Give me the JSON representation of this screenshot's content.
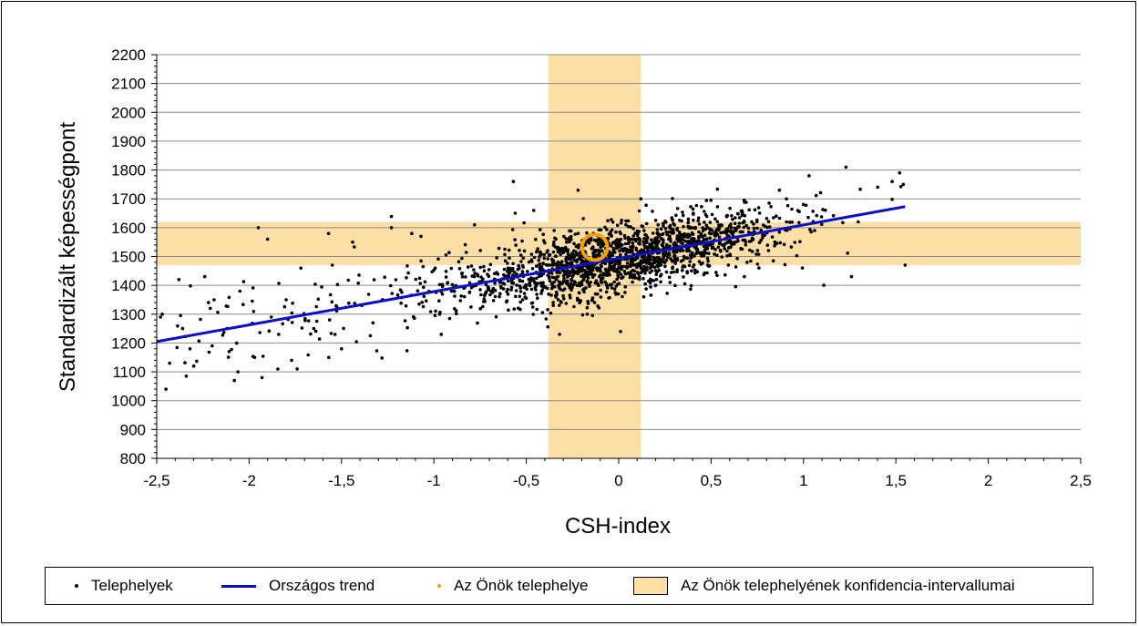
{
  "chart_data": {
    "type": "scatter",
    "xlabel": "CSH-index",
    "ylabel": "Standardizált képességpont",
    "xlim": [
      -2.5,
      2.5
    ],
    "ylim": [
      800,
      2200
    ],
    "x_ticks": [
      "-2,5",
      "-2",
      "-1,5",
      "-1",
      "-0,5",
      "0",
      "0,5",
      "1",
      "1,5",
      "2",
      "2,5"
    ],
    "y_ticks": [
      "800",
      "900",
      "1000",
      "1100",
      "1200",
      "1300",
      "1400",
      "1500",
      "1600",
      "1700",
      "1800",
      "1900",
      "2000",
      "2100",
      "2200"
    ],
    "y_grid": true,
    "x_grid": false,
    "legend_position": "bottom",
    "series": [
      {
        "name": "Telephelyek",
        "kind": "points",
        "color": "#000000",
        "approx_point_count": 1800,
        "distribution": {
          "x_center": 0.0,
          "x_range": [
            -2.5,
            1.55
          ],
          "trend_residual_sd": 58
        },
        "points": [
          {
            "x": -2.48,
            "y": 1290
          },
          {
            "x": -2.47,
            "y": 1300
          },
          {
            "x": -2.45,
            "y": 1040
          },
          {
            "x": -2.43,
            "y": 1130
          },
          {
            "x": -2.38,
            "y": 1420
          },
          {
            "x": -2.36,
            "y": 1250
          },
          {
            "x": -2.34,
            "y": 1085
          },
          {
            "x": -2.32,
            "y": 1180
          },
          {
            "x": -2.3,
            "y": 1120
          },
          {
            "x": -2.24,
            "y": 1430
          },
          {
            "x": -2.22,
            "y": 1340
          },
          {
            "x": -2.2,
            "y": 1190
          },
          {
            "x": -2.19,
            "y": 1350
          },
          {
            "x": -2.12,
            "y": 1250
          },
          {
            "x": -2.08,
            "y": 1070
          },
          {
            "x": -2.06,
            "y": 1100
          },
          {
            "x": -2.05,
            "y": 1380
          },
          {
            "x": -1.97,
            "y": 1150
          },
          {
            "x": -1.95,
            "y": 1600
          },
          {
            "x": -1.93,
            "y": 1080
          },
          {
            "x": -1.9,
            "y": 1560
          },
          {
            "x": -1.88,
            "y": 1290
          },
          {
            "x": -1.84,
            "y": 1230
          },
          {
            "x": -1.8,
            "y": 1350
          },
          {
            "x": -1.77,
            "y": 1140
          },
          {
            "x": -1.74,
            "y": 1110
          },
          {
            "x": -1.72,
            "y": 1460
          },
          {
            "x": -1.65,
            "y": 1250
          },
          {
            "x": -1.57,
            "y": 1580
          },
          {
            "x": -1.55,
            "y": 1470
          },
          {
            "x": -1.5,
            "y": 1180
          },
          {
            "x": -1.44,
            "y": 1550
          },
          {
            "x": -1.39,
            "y": 1330
          },
          {
            "x": -1.33,
            "y": 1270
          },
          {
            "x": -1.23,
            "y": 1600
          },
          {
            "x": -1.12,
            "y": 1580
          },
          {
            "x": -1.07,
            "y": 1570
          },
          {
            "x": -0.96,
            "y": 1230
          },
          {
            "x": -0.78,
            "y": 1610
          },
          {
            "x": -0.57,
            "y": 1760
          },
          {
            "x": -0.56,
            "y": 1650
          },
          {
            "x": -0.46,
            "y": 1660
          },
          {
            "x": -0.22,
            "y": 1730
          },
          {
            "x": -0.32,
            "y": 1230
          },
          {
            "x": -0.17,
            "y": 1300
          },
          {
            "x": 0.01,
            "y": 1240
          },
          {
            "x": 0.12,
            "y": 1700
          },
          {
            "x": 0.68,
            "y": 1430
          },
          {
            "x": 0.87,
            "y": 1730
          },
          {
            "x": 1.03,
            "y": 1780
          },
          {
            "x": 1.06,
            "y": 1590
          },
          {
            "x": 1.11,
            "y": 1400
          },
          {
            "x": 1.23,
            "y": 1810
          },
          {
            "x": 1.26,
            "y": 1430
          },
          {
            "x": 1.48,
            "y": 1760
          },
          {
            "x": 1.52,
            "y": 1790
          },
          {
            "x": 1.54,
            "y": 1750
          },
          {
            "x": 1.55,
            "y": 1470
          }
        ]
      },
      {
        "name": "Országos trend",
        "kind": "line",
        "color": "#0a10c8",
        "x": [
          -2.5,
          1.55
        ],
        "values": [
          1205,
          1673
        ]
      },
      {
        "name": "Az Önök telephelye",
        "kind": "highlight",
        "color": "#f5a000",
        "x": -0.13,
        "y": 1532
      },
      {
        "name": "Az Önök telephelyének konfidencia-intervallumai",
        "kind": "bands",
        "color": "#fcdfa7",
        "x_interval": [
          -0.38,
          0.12
        ],
        "y_interval": [
          1470,
          1620
        ]
      }
    ]
  }
}
